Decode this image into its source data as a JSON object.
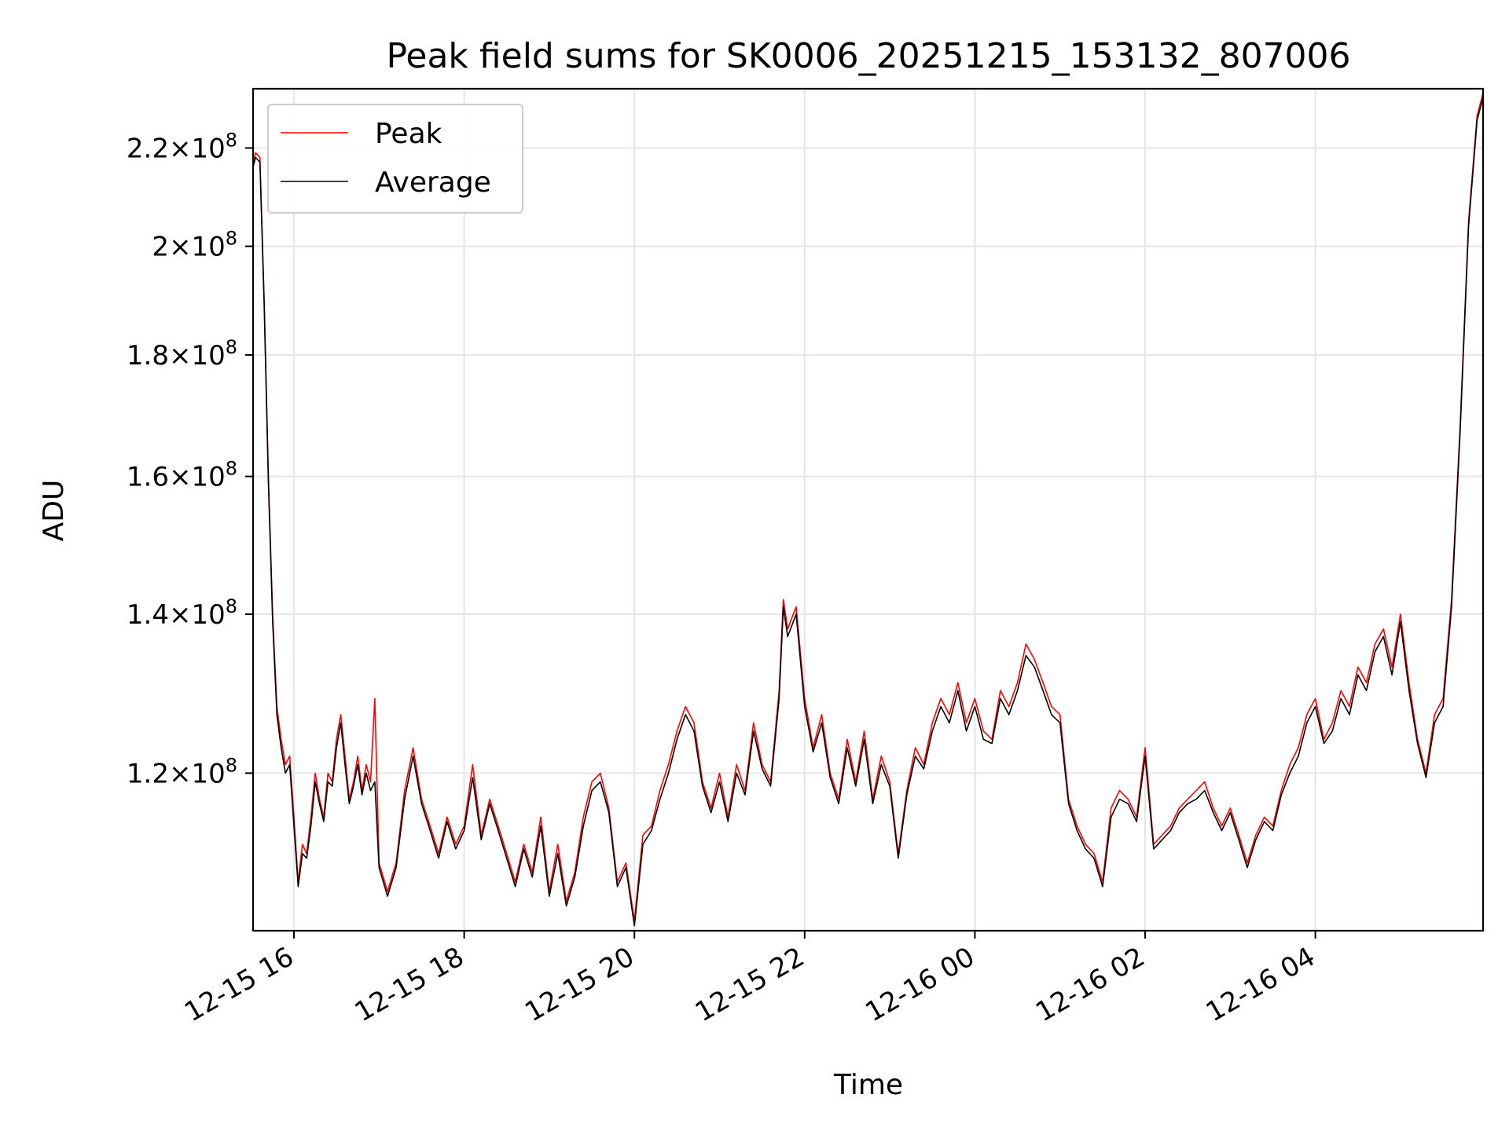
{
  "chart_data": {
    "type": "line",
    "title": "Peak field sums for SK0006_20251215_153132_807006",
    "xlabel": "Time",
    "ylabel": "ADU",
    "yscale": "log",
    "ylim": [
      103000000,
      233000000
    ],
    "xlim_hours": [
      15.52,
      29.97
    ],
    "grid": true,
    "legend_position": "upper-left",
    "x_ticks": [
      {
        "hour": 16,
        "label": "12-15 16"
      },
      {
        "hour": 18,
        "label": "12-15 18"
      },
      {
        "hour": 20,
        "label": "12-15 20"
      },
      {
        "hour": 22,
        "label": "12-15 22"
      },
      {
        "hour": 24,
        "label": "12-16 00"
      },
      {
        "hour": 26,
        "label": "12-16 02"
      },
      {
        "hour": 28,
        "label": "12-16 04"
      }
    ],
    "y_ticks": [
      {
        "value": 120000000,
        "mant": "1.2",
        "exp": "8"
      },
      {
        "value": 140000000,
        "mant": "1.4",
        "exp": "8"
      },
      {
        "value": 160000000,
        "mant": "1.6",
        "exp": "8"
      },
      {
        "value": 180000000,
        "mant": "1.8",
        "exp": "8"
      },
      {
        "value": 200000000,
        "mant": "2",
        "exp": "8"
      },
      {
        "value": 220000000,
        "mant": "2.2",
        "exp": "8"
      }
    ],
    "x_hours": [
      15.52,
      15.55,
      15.6,
      15.65,
      15.7,
      15.75,
      15.8,
      15.85,
      15.9,
      15.95,
      16.0,
      16.05,
      16.1,
      16.15,
      16.2,
      16.25,
      16.3,
      16.35,
      16.4,
      16.45,
      16.5,
      16.55,
      16.6,
      16.65,
      16.7,
      16.75,
      16.8,
      16.85,
      16.9,
      16.95,
      17.0,
      17.1,
      17.2,
      17.3,
      17.4,
      17.5,
      17.6,
      17.7,
      17.8,
      17.9,
      18.0,
      18.1,
      18.2,
      18.3,
      18.4,
      18.5,
      18.6,
      18.7,
      18.8,
      18.9,
      19.0,
      19.1,
      19.2,
      19.3,
      19.4,
      19.5,
      19.6,
      19.7,
      19.8,
      19.9,
      20.0,
      20.1,
      20.2,
      20.3,
      20.4,
      20.5,
      20.6,
      20.7,
      20.8,
      20.9,
      21.0,
      21.1,
      21.2,
      21.3,
      21.4,
      21.5,
      21.6,
      21.7,
      21.75,
      21.8,
      21.9,
      22.0,
      22.1,
      22.2,
      22.3,
      22.4,
      22.5,
      22.6,
      22.7,
      22.8,
      22.9,
      23.0,
      23.1,
      23.2,
      23.3,
      23.4,
      23.5,
      23.6,
      23.7,
      23.8,
      23.9,
      24.0,
      24.1,
      24.2,
      24.3,
      24.4,
      24.5,
      24.6,
      24.7,
      24.8,
      24.9,
      25.0,
      25.1,
      25.2,
      25.3,
      25.4,
      25.5,
      25.6,
      25.7,
      25.8,
      25.9,
      26.0,
      26.1,
      26.2,
      26.3,
      26.4,
      26.5,
      26.6,
      26.7,
      26.8,
      26.9,
      27.0,
      27.1,
      27.2,
      27.3,
      27.4,
      27.5,
      27.6,
      27.7,
      27.8,
      27.9,
      28.0,
      28.1,
      28.2,
      28.3,
      28.4,
      28.5,
      28.6,
      28.7,
      28.8,
      28.9,
      29.0,
      29.1,
      29.2,
      29.3,
      29.4,
      29.5,
      29.6,
      29.7,
      29.8,
      29.9,
      29.97
    ],
    "series": [
      {
        "name": "Peak",
        "color": "#ff0000",
        "values": [
          217000000,
          219000000,
          218000000,
          190000000,
          160000000,
          140000000,
          128000000,
          124000000,
          121000000,
          122000000,
          115000000,
          108000000,
          112000000,
          111000000,
          115000000,
          120000000,
          117000000,
          115000000,
          120000000,
          119000000,
          124000000,
          127000000,
          122000000,
          117000000,
          119000000,
          122000000,
          118000000,
          121000000,
          119000000,
          129000000,
          110000000,
          107000000,
          110000000,
          118000000,
          123000000,
          117000000,
          114000000,
          111000000,
          115000000,
          112000000,
          114000000,
          121000000,
          113000000,
          117000000,
          114000000,
          111000000,
          108000000,
          112000000,
          109000000,
          115000000,
          107000000,
          112000000,
          106000000,
          109000000,
          115000000,
          119000000,
          120000000,
          116000000,
          108000000,
          110000000,
          104000000,
          113000000,
          114000000,
          118000000,
          121000000,
          125000000,
          128000000,
          126000000,
          119000000,
          116000000,
          120000000,
          115000000,
          121000000,
          118000000,
          126000000,
          121000000,
          119000000,
          130000000,
          142000000,
          138000000,
          141000000,
          129000000,
          123000000,
          127000000,
          120000000,
          117000000,
          124000000,
          119000000,
          125000000,
          117000000,
          122000000,
          119000000,
          111000000,
          118000000,
          123000000,
          121000000,
          126000000,
          129000000,
          127000000,
          131000000,
          126000000,
          129000000,
          125000000,
          124000000,
          130000000,
          128000000,
          131000000,
          136000000,
          134000000,
          131000000,
          128000000,
          127000000,
          117000000,
          114000000,
          112000000,
          111000000,
          108000000,
          116000000,
          118000000,
          117000000,
          115000000,
          123000000,
          112000000,
          113000000,
          114000000,
          116000000,
          117000000,
          118000000,
          119000000,
          116000000,
          114000000,
          116000000,
          113000000,
          110000000,
          113000000,
          115000000,
          114000000,
          118000000,
          121000000,
          123000000,
          127000000,
          129000000,
          124000000,
          126000000,
          130000000,
          128000000,
          133000000,
          131000000,
          136000000,
          138000000,
          133000000,
          140000000,
          131000000,
          124000000,
          120000000,
          127000000,
          129000000,
          142000000,
          168000000,
          205000000,
          227000000,
          232000000
        ]
      },
      {
        "name": "Average",
        "color": "#000000",
        "values": [
          216000000,
          218000000,
          217000000,
          189000000,
          159000000,
          139000000,
          127000000,
          123000000,
          120000000,
          121000000,
          114000000,
          107500000,
          111000000,
          110500000,
          114000000,
          119000000,
          116500000,
          114500000,
          119000000,
          118500000,
          123000000,
          126000000,
          121000000,
          116500000,
          118500000,
          121000000,
          117500000,
          120000000,
          118000000,
          119000000,
          109500000,
          106500000,
          109500000,
          117000000,
          122000000,
          116500000,
          113500000,
          110500000,
          114500000,
          111500000,
          113500000,
          119500000,
          112500000,
          116500000,
          113500000,
          110500000,
          107500000,
          111500000,
          108500000,
          114000000,
          106500000,
          111000000,
          105500000,
          108500000,
          114000000,
          118000000,
          119000000,
          115500000,
          107500000,
          109500000,
          103500000,
          112000000,
          113500000,
          117000000,
          120000000,
          124000000,
          127000000,
          125000000,
          118500000,
          115500000,
          119000000,
          114500000,
          120000000,
          117500000,
          125000000,
          120500000,
          118500000,
          129000000,
          141000000,
          137000000,
          140000000,
          128000000,
          122500000,
          126000000,
          119500000,
          116500000,
          123000000,
          118500000,
          124000000,
          116500000,
          121000000,
          118500000,
          110500000,
          117500000,
          122000000,
          120500000,
          125000000,
          128000000,
          126000000,
          130000000,
          125000000,
          128000000,
          124000000,
          123500000,
          129000000,
          127000000,
          130000000,
          134500000,
          133000000,
          130000000,
          127000000,
          126000000,
          116500000,
          113500000,
          111500000,
          110500000,
          107500000,
          115000000,
          117000000,
          116500000,
          114500000,
          122000000,
          111500000,
          112500000,
          113500000,
          115500000,
          116500000,
          117000000,
          118000000,
          115500000,
          113500000,
          115500000,
          112500000,
          109500000,
          112500000,
          114500000,
          113500000,
          117500000,
          120000000,
          122000000,
          126000000,
          128000000,
          123500000,
          125000000,
          129000000,
          127000000,
          132000000,
          130000000,
          135000000,
          137000000,
          132000000,
          139000000,
          130000000,
          123500000,
          119500000,
          126000000,
          128000000,
          141000000,
          167000000,
          204000000,
          226000000,
          231000000
        ]
      }
    ]
  }
}
